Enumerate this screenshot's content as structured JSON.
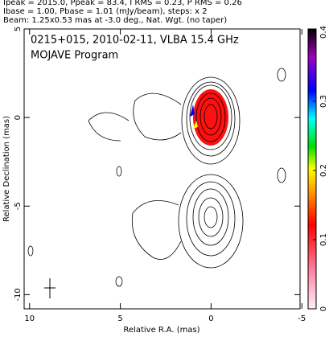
{
  "chart_data": {
    "type": "contour",
    "header": [
      "Ipeak = 2015.0, Ppeak = 83.4, I RMS = 0.23, P RMS = 0.26",
      "Ibase = 1.00, Pbase = 1.01 (mJy/beam), steps: x 2",
      "Beam: 1.25x0.53 mas at -3.0 deg., Nat. Wgt. (no taper)"
    ],
    "title": "0215+015, 2010-02-11, VLBA 15.4 GHz",
    "subtitle": "MOJAVE Program",
    "xlabel": "Relative R.A. (mas)",
    "ylabel": "Relative Declination (mas)",
    "xlim": [
      10.3,
      -4.9
    ],
    "xticks": [
      10,
      5,
      0,
      -5
    ],
    "ylim": [
      -10.8,
      5
    ],
    "yticks": [
      5,
      0,
      -5,
      -10
    ],
    "clim": [
      0,
      0.4
    ],
    "cticks": [
      0,
      0.1,
      0.2,
      0.3,
      0.4
    ]
  }
}
